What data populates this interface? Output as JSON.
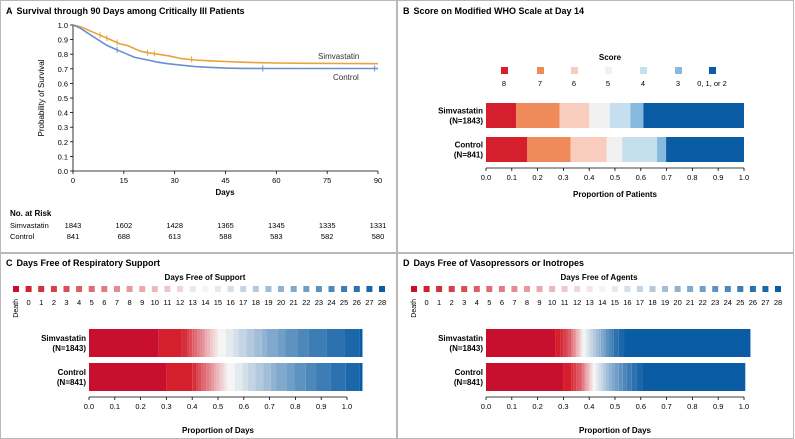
{
  "panels": {
    "a": {
      "letter": "A",
      "title": "Survival through 90 Days among Critically Ill Patients"
    },
    "b": {
      "letter": "B",
      "title": "Score on Modified WHO Scale at Day 14"
    },
    "c": {
      "letter": "C",
      "title": "Days Free of Respiratory Support"
    },
    "d": {
      "letter": "D",
      "title": "Days Free of Vasopressors or Inotropes"
    }
  },
  "risk_table": {
    "title": "No. at Risk",
    "rows": [
      {
        "label": "Simvastatin",
        "values": [
          "1843",
          "1602",
          "1428",
          "1365",
          "1345",
          "1335",
          "1331"
        ]
      },
      {
        "label": "Control",
        "values": [
          "841",
          "688",
          "613",
          "588",
          "583",
          "582",
          "580"
        ]
      }
    ]
  },
  "colors": {
    "simvastatin_line": "#e8a33a",
    "control_line": "#6a8fd0",
    "frame": "#b8b8b8",
    "grid": "#e6e6e6"
  },
  "chart_data": [
    {
      "type": "line",
      "title": "Survival through 90 Days among Critically Ill Patients",
      "xlabel": "Days",
      "ylabel": "Probability of Survival",
      "xlim": [
        0,
        90
      ],
      "ylim": [
        0,
        1.0
      ],
      "xticks": [
        "0",
        "15",
        "30",
        "45",
        "60",
        "75",
        "90"
      ],
      "yticks": [
        "0.0",
        "0.1",
        "0.2",
        "0.3",
        "0.4",
        "0.5",
        "0.6",
        "0.7",
        "0.8",
        "0.9",
        "1.0"
      ],
      "series": [
        {
          "name": "Simvastatin",
          "label": "Simvastatin",
          "points": [
            [
              0,
              1.0
            ],
            [
              2,
              0.99
            ],
            [
              4,
              0.97
            ],
            [
              6,
              0.95
            ],
            [
              8,
              0.93
            ],
            [
              10,
              0.91
            ],
            [
              12,
              0.89
            ],
            [
              14,
              0.87
            ],
            [
              16,
              0.86
            ],
            [
              18,
              0.84
            ],
            [
              20,
              0.82
            ],
            [
              22,
              0.81
            ],
            [
              25,
              0.8
            ],
            [
              28,
              0.79
            ],
            [
              32,
              0.77
            ],
            [
              36,
              0.76
            ],
            [
              40,
              0.755
            ],
            [
              45,
              0.75
            ],
            [
              50,
              0.745
            ],
            [
              55,
              0.742
            ],
            [
              60,
              0.74
            ],
            [
              70,
              0.738
            ],
            [
              80,
              0.736
            ],
            [
              90,
              0.735
            ]
          ],
          "censor_marks": [
            [
              8,
              0.93
            ],
            [
              10,
              0.91
            ],
            [
              13,
              0.88
            ],
            [
              22,
              0.81
            ],
            [
              24,
              0.805
            ],
            [
              35,
              0.765
            ]
          ]
        },
        {
          "name": "Control",
          "label": "Control",
          "points": [
            [
              0,
              1.0
            ],
            [
              2,
              0.98
            ],
            [
              4,
              0.95
            ],
            [
              6,
              0.92
            ],
            [
              8,
              0.89
            ],
            [
              10,
              0.86
            ],
            [
              12,
              0.84
            ],
            [
              14,
              0.82
            ],
            [
              16,
              0.8
            ],
            [
              18,
              0.78
            ],
            [
              20,
              0.77
            ],
            [
              22,
              0.76
            ],
            [
              25,
              0.745
            ],
            [
              28,
              0.735
            ],
            [
              32,
              0.725
            ],
            [
              36,
              0.715
            ],
            [
              40,
              0.71
            ],
            [
              45,
              0.705
            ],
            [
              50,
              0.703
            ],
            [
              56,
              0.702
            ],
            [
              60,
              0.702
            ],
            [
              70,
              0.702
            ],
            [
              80,
              0.702
            ],
            [
              90,
              0.702
            ]
          ],
          "censor_marks": [
            [
              13,
              0.83
            ],
            [
              56,
              0.702
            ],
            [
              89,
              0.702
            ]
          ]
        }
      ]
    },
    {
      "type": "bar",
      "stacked": true,
      "title": "Score on Modified WHO Scale at Day 14",
      "legend_title": "Score",
      "xlabel": "Proportion of Patients",
      "xlim": [
        0,
        1.0
      ],
      "xticks": [
        "0.0",
        "0.1",
        "0.2",
        "0.3",
        "0.4",
        "0.5",
        "0.6",
        "0.7",
        "0.8",
        "0.9",
        "1.0"
      ],
      "categories": [
        "8",
        "7",
        "6",
        "5",
        "4",
        "3",
        "0, 1, or 2"
      ],
      "colors": [
        "#d51f2d",
        "#ef8a5a",
        "#f9cdbd",
        "#f1f1f1",
        "#c5dfee",
        "#86b9de",
        "#0a5ca4"
      ],
      "rows": [
        {
          "name": "Simvastatin",
          "label": "Simvastatin",
          "n": "(N=1843)",
          "values": [
            0.117,
            0.168,
            0.115,
            0.08,
            0.08,
            0.05,
            0.39
          ]
        },
        {
          "name": "Control",
          "label": "Control",
          "n": "(N=841)",
          "values": [
            0.16,
            0.168,
            0.14,
            0.06,
            0.135,
            0.035,
            0.302
          ]
        }
      ]
    },
    {
      "type": "bar",
      "stacked": true,
      "title": "Days Free of Respiratory Support",
      "legend_title": "Days Free of Support",
      "xlabel": "Proportion of Days",
      "xlim": [
        0,
        1.0
      ],
      "xticks": [
        "0.0",
        "0.1",
        "0.2",
        "0.3",
        "0.4",
        "0.5",
        "0.6",
        "0.7",
        "0.8",
        "0.9",
        "1.0"
      ],
      "categories": [
        "Death",
        "0",
        "1",
        "2",
        "3",
        "4",
        "5",
        "6",
        "7",
        "8",
        "9",
        "10",
        "11",
        "12",
        "13",
        "14",
        "15",
        "16",
        "17",
        "18",
        "19",
        "20",
        "21",
        "22",
        "23",
        "24",
        "25",
        "26",
        "27",
        "28"
      ],
      "rows": [
        {
          "name": "Simvastatin",
          "label": "Simvastatin",
          "n": "(N=1843)",
          "values": [
            0.27,
            0.09,
            0.02,
            0.01,
            0.01,
            0.01,
            0.01,
            0.01,
            0.01,
            0.01,
            0.01,
            0.01,
            0.01,
            0.01,
            0.01,
            0.03,
            0.03,
            0.02,
            0.03,
            0.03,
            0.03,
            0.02,
            0.04,
            0.03,
            0.05,
            0.04,
            0.07,
            0.07,
            0.06,
            0.01
          ]
        },
        {
          "name": "Control",
          "label": "Control",
          "n": "(N=841)",
          "values": [
            0.3,
            0.1,
            0.015,
            0.01,
            0.01,
            0.01,
            0.01,
            0.01,
            0.01,
            0.01,
            0.01,
            0.01,
            0.01,
            0.01,
            0.01,
            0.03,
            0.03,
            0.02,
            0.03,
            0.03,
            0.03,
            0.02,
            0.04,
            0.03,
            0.045,
            0.04,
            0.055,
            0.06,
            0.055,
            0.01
          ]
        }
      ]
    },
    {
      "type": "bar",
      "stacked": true,
      "title": "Days Free of Vasopressors or Inotropes",
      "legend_title": "Days Free of Agents",
      "xlabel": "Proportion of Days",
      "xlim": [
        0,
        1.0
      ],
      "xticks": [
        "0.0",
        "0.1",
        "0.2",
        "0.3",
        "0.4",
        "0.5",
        "0.6",
        "0.7",
        "0.8",
        "0.9",
        "1.0"
      ],
      "categories": [
        "Death",
        "0",
        "1",
        "2",
        "3",
        "4",
        "5",
        "6",
        "7",
        "8",
        "9",
        "10",
        "11",
        "12",
        "13",
        "14",
        "15",
        "16",
        "17",
        "18",
        "19",
        "20",
        "21",
        "22",
        "23",
        "24",
        "25",
        "26",
        "27",
        "28"
      ],
      "rows": [
        {
          "name": "Simvastatin",
          "label": "Simvastatin",
          "n": "(N=1843)",
          "values": [
            0.27,
            0.02,
            0.01,
            0.01,
            0.01,
            0.01,
            0.005,
            0.005,
            0.005,
            0.005,
            0.005,
            0.005,
            0.005,
            0.005,
            0.005,
            0.01,
            0.01,
            0.01,
            0.01,
            0.01,
            0.01,
            0.01,
            0.01,
            0.01,
            0.01,
            0.01,
            0.01,
            0.02,
            0.02,
            0.49
          ]
        },
        {
          "name": "Control",
          "label": "Control",
          "n": "(N=841)",
          "values": [
            0.3,
            0.03,
            0.01,
            0.01,
            0.01,
            0.01,
            0.005,
            0.005,
            0.005,
            0.005,
            0.005,
            0.005,
            0.005,
            0.005,
            0.005,
            0.01,
            0.01,
            0.01,
            0.01,
            0.01,
            0.01,
            0.01,
            0.015,
            0.015,
            0.015,
            0.015,
            0.02,
            0.02,
            0.02,
            0.4
          ]
        }
      ]
    }
  ]
}
